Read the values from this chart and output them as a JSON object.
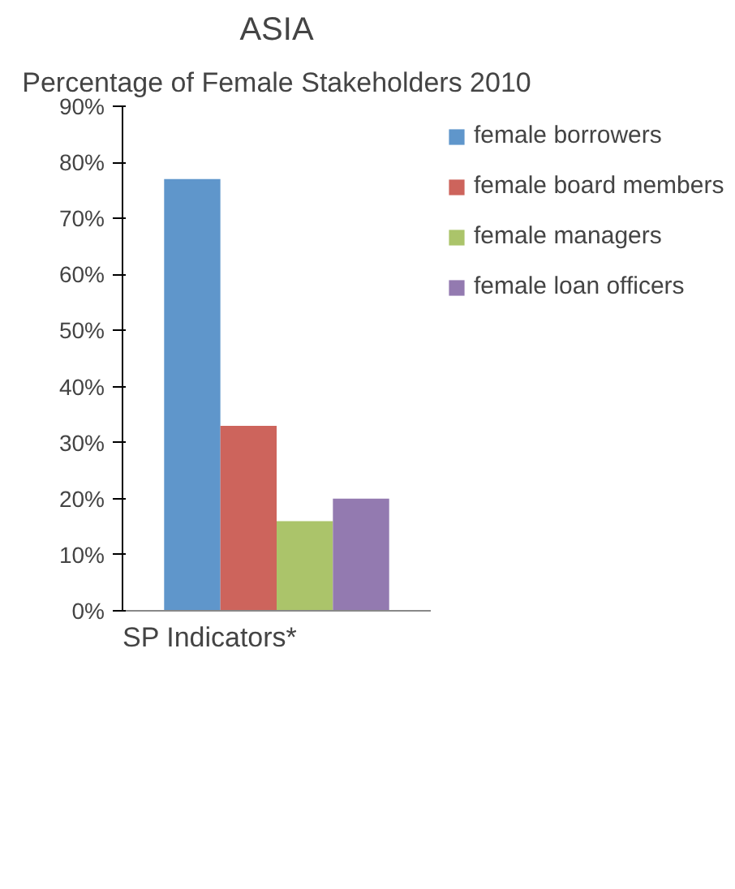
{
  "chart_data": {
    "type": "bar",
    "title": "ASIA",
    "subtitle": "Percentage of Female Stakeholders 2010",
    "annotations": [
      "SP Indicators*"
    ],
    "categories": [
      null
    ],
    "series": [
      {
        "name": "female borrowers",
        "color": "#5f96cb",
        "values": [
          77
        ]
      },
      {
        "name": "female board members",
        "color": "#cd645c",
        "values": [
          33
        ]
      },
      {
        "name": "female managers",
        "color": "#abc46a",
        "values": [
          16
        ]
      },
      {
        "name": "female loan officers",
        "color": "#937ab0",
        "values": [
          20
        ]
      }
    ],
    "ylim": [
      0,
      90
    ],
    "yticks": [
      {
        "value": 0,
        "label": "0%"
      },
      {
        "value": 10,
        "label": "10%"
      },
      {
        "value": 20,
        "label": "20%"
      },
      {
        "value": 30,
        "label": "30%"
      },
      {
        "value": 40,
        "label": "40%"
      },
      {
        "value": 50,
        "label": "50%"
      },
      {
        "value": 60,
        "label": "60%"
      },
      {
        "value": 70,
        "label": "70%"
      },
      {
        "value": 80,
        "label": "80%"
      },
      {
        "value": 90,
        "label": "90%"
      }
    ],
    "legend": "right",
    "tick_labels": "y"
  }
}
